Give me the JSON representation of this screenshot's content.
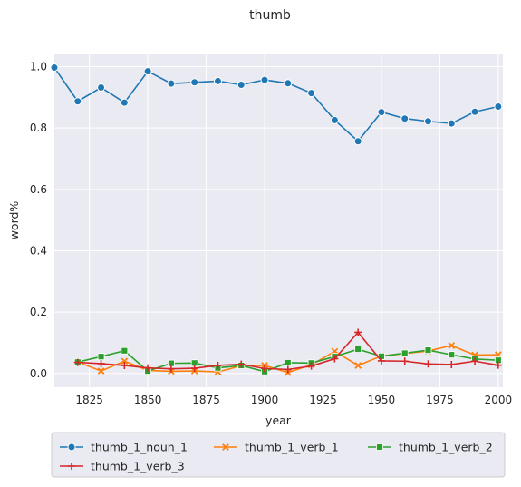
{
  "chart_data": {
    "type": "line",
    "title": "thumb",
    "xlabel": "year",
    "ylabel": "word%",
    "xlim": [
      1810,
      2002
    ],
    "ylim": [
      -0.045,
      1.04
    ],
    "xticks": [
      1825,
      1850,
      1875,
      1900,
      1925,
      1950,
      1975,
      2000
    ],
    "yticks": [
      0.0,
      0.2,
      0.4,
      0.6,
      0.8,
      1.0
    ],
    "xtick_labels": [
      "1825",
      "1850",
      "1875",
      "1900",
      "1925",
      "1950",
      "1975",
      "2000"
    ],
    "ytick_labels": [
      "0.0",
      "0.2",
      "0.4",
      "0.6",
      "0.8",
      "1.0"
    ],
    "grid": true,
    "legend_position": "below",
    "series": [
      {
        "name": "thumb_1_noun_1",
        "color": "#1f77b4",
        "marker": "circle",
        "x": [
          1810,
          1820,
          1830,
          1840,
          1850,
          1860,
          1870,
          1880,
          1890,
          1900,
          1910,
          1920,
          1930,
          1940,
          1950,
          1960,
          1970,
          1980,
          1990,
          2000
        ],
        "y": [
          0.997,
          0.887,
          0.932,
          0.883,
          0.985,
          0.945,
          0.949,
          0.953,
          0.941,
          0.957,
          0.946,
          0.914,
          0.826,
          0.757,
          0.852,
          0.831,
          0.822,
          0.815,
          0.853,
          0.87
        ]
      },
      {
        "name": "thumb_1_verb_1",
        "color": "#ff7f0e",
        "marker": "x",
        "x": [
          1820,
          1830,
          1840,
          1850,
          1860,
          1870,
          1880,
          1890,
          1900,
          1910,
          1920,
          1930,
          1940,
          1950,
          1960,
          1970,
          1980,
          1990,
          2000
        ],
        "y": [
          0.037,
          0.008,
          0.04,
          0.01,
          0.007,
          0.008,
          0.005,
          0.025,
          0.026,
          0.003,
          0.028,
          0.072,
          0.026,
          0.057,
          0.065,
          0.073,
          0.091,
          0.06,
          0.061
        ]
      },
      {
        "name": "thumb_1_verb_2",
        "color": "#2ca02c",
        "marker": "square",
        "x": [
          1820,
          1830,
          1840,
          1850,
          1860,
          1870,
          1880,
          1890,
          1900,
          1910,
          1920,
          1930,
          1940,
          1950,
          1960,
          1970,
          1980,
          1990,
          2000
        ],
        "y": [
          0.037,
          0.055,
          0.074,
          0.008,
          0.033,
          0.034,
          0.018,
          0.026,
          0.006,
          0.035,
          0.034,
          0.055,
          0.079,
          0.056,
          0.066,
          0.076,
          0.061,
          0.047,
          0.043
        ]
      },
      {
        "name": "thumb_1_verb_3",
        "color": "#d62728",
        "marker": "plus",
        "x": [
          1820,
          1830,
          1840,
          1850,
          1860,
          1870,
          1880,
          1890,
          1900,
          1910,
          1920,
          1930,
          1940,
          1950,
          1960,
          1970,
          1980,
          1990,
          2000
        ],
        "y": [
          0.036,
          0.032,
          0.026,
          0.018,
          0.015,
          0.017,
          0.026,
          0.03,
          0.016,
          0.013,
          0.024,
          0.048,
          0.134,
          0.041,
          0.04,
          0.031,
          0.029,
          0.04,
          0.027
        ]
      }
    ]
  }
}
